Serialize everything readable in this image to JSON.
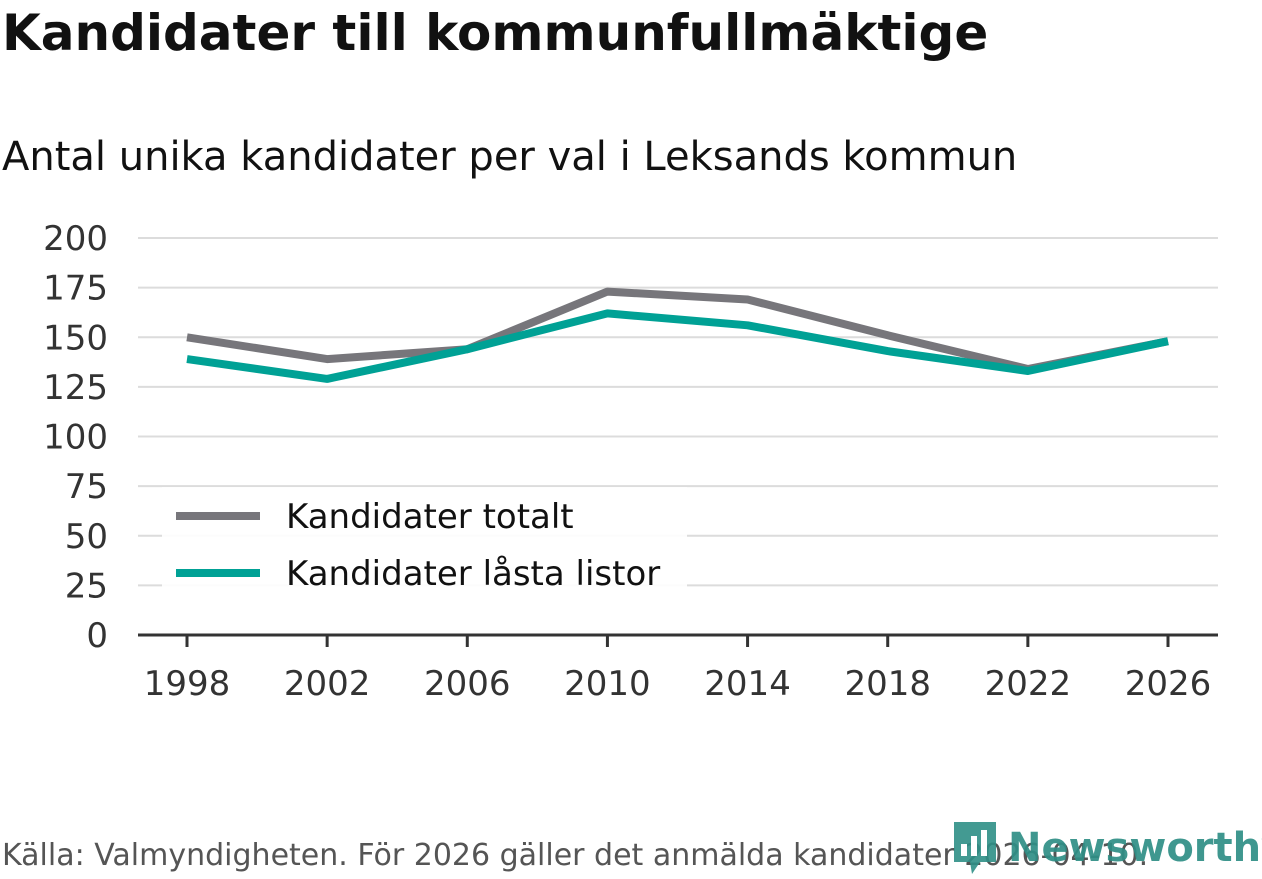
{
  "header": {
    "title": "Kandidater till kommunfullmäktige",
    "subtitle": "Antal unika kandidater per val i Leksands kommun"
  },
  "footer": {
    "source": "Källa: Valmyndigheten. För 2026 gäller det anmälda kandidater 2026-04-10.",
    "brand": "Newsworthy"
  },
  "colors": {
    "total": "#77767b",
    "locked": "#00a195",
    "grid": "#dcdcdc",
    "axis": "#333333",
    "brand": "#2f8f86"
  },
  "icons": {
    "logo": "newsworthy-chat-chart-icon"
  },
  "chart_data": {
    "type": "line",
    "title": "Kandidater till kommunfullmäktige",
    "subtitle": "Antal unika kandidater per val i Leksands kommun",
    "xlabel": "",
    "ylabel": "",
    "x": [
      "1998",
      "2002",
      "2006",
      "2010",
      "2014",
      "2018",
      "2022",
      "2026"
    ],
    "ylim": [
      0,
      200
    ],
    "yticks": [
      "0",
      "25",
      "50",
      "75",
      "100",
      "125",
      "150",
      "175",
      "200"
    ],
    "grid": true,
    "legend_position": "lower-left",
    "series": [
      {
        "name": "Kandidater totalt",
        "color": "#77767b",
        "values": [
          150,
          139,
          144,
          173,
          169,
          151,
          134,
          148
        ]
      },
      {
        "name": "Kandidater låsta listor",
        "color": "#00a195",
        "values": [
          139,
          129,
          144,
          162,
          156,
          143,
          133,
          148
        ]
      }
    ]
  }
}
